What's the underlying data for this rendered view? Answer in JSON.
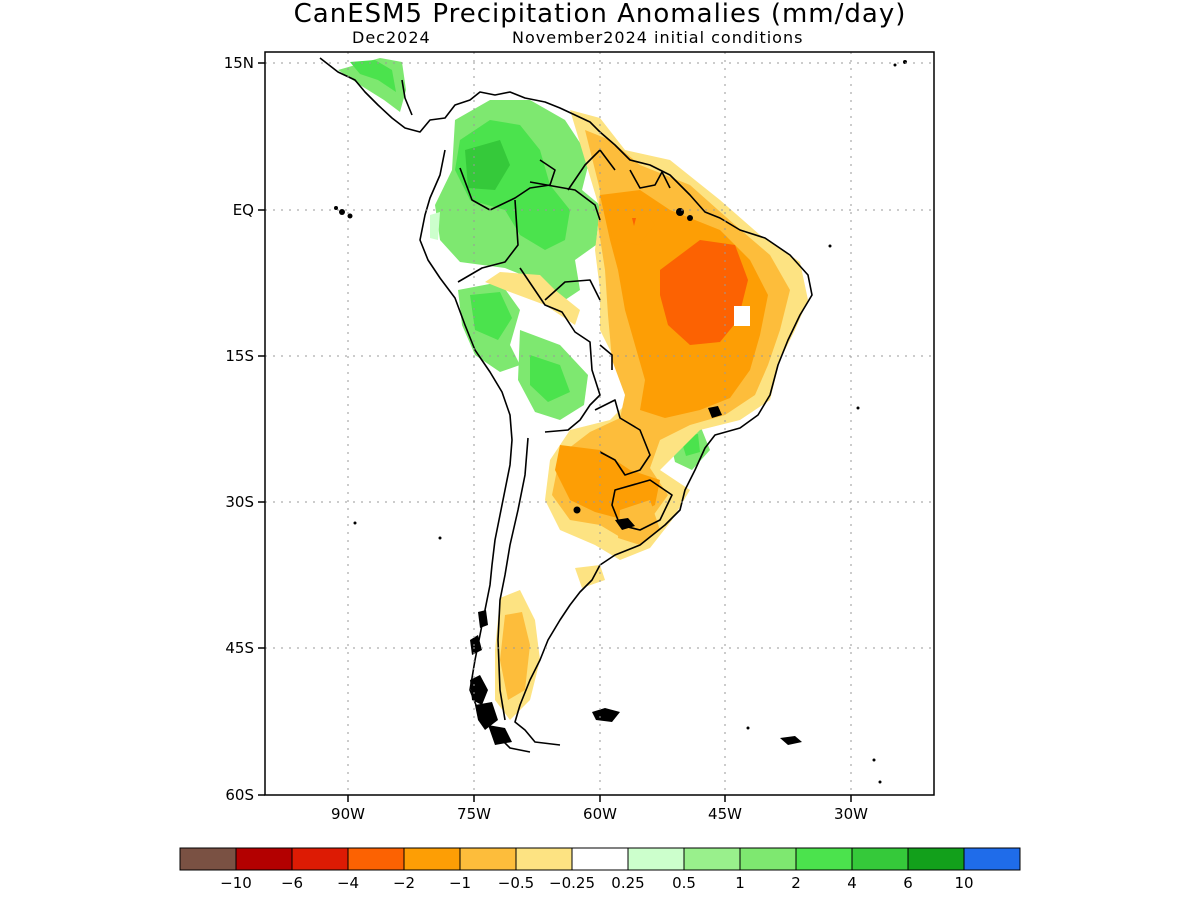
{
  "title": "CanESM5 Precipitation Anomalies (mm/day)",
  "valid_month": "Dec2024",
  "initial_conditions": "November2024 initial conditions",
  "map": {
    "lat_ticks": [
      "15N",
      "EQ",
      "15S",
      "30S",
      "45S",
      "60S"
    ],
    "lon_ticks": [
      "90W",
      "75W",
      "60W",
      "45W",
      "30W"
    ],
    "grid": "dotted"
  },
  "colorbar": {
    "colors": [
      "#7a5143",
      "#b30000",
      "#dd1b04",
      "#fc6202",
      "#fd9e05",
      "#fdbd3b",
      "#fde382",
      "#ffffff",
      "#ccffcc",
      "#99f08c",
      "#7ee870",
      "#4be34d",
      "#35c93a",
      "#12a01b",
      "#1f6cea"
    ],
    "labels": [
      "−10",
      "−6",
      "−4",
      "−2",
      "−1",
      "−0.5",
      "−0.25",
      "0.25",
      "0.5",
      "1",
      "2",
      "4",
      "6",
      "10"
    ]
  }
}
